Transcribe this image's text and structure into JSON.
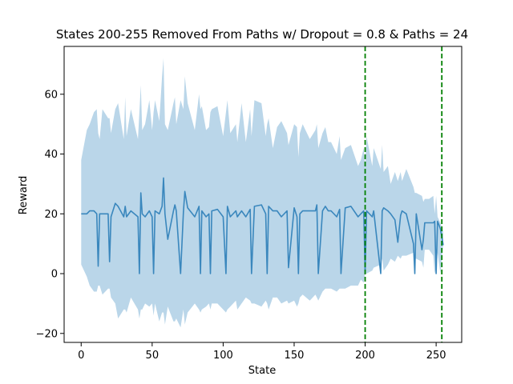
{
  "chart_data": {
    "type": "line",
    "title": "States 200-255 Removed From Paths w/ Dropout = 0.8 & Paths = 24",
    "xlabel": "State",
    "ylabel": "Reward",
    "xlim": [
      -12,
      268
    ],
    "ylim": [
      -23,
      76
    ],
    "xticks": [
      0,
      50,
      100,
      150,
      200,
      250
    ],
    "yticks": [
      -20,
      0,
      20,
      40,
      60
    ],
    "grid": false,
    "legend": "none",
    "colors": {
      "mean_line": "#3a87bd",
      "band": "#bad6e9",
      "markers": "#008000"
    },
    "series": [
      {
        "x": [
          0,
          4,
          6,
          9,
          11,
          12,
          13,
          15,
          19,
          20,
          21,
          24,
          26,
          30,
          31,
          32,
          35,
          40,
          41,
          42,
          43,
          45,
          48,
          50,
          51,
          52,
          55,
          57,
          58,
          59,
          61,
          65,
          66,
          67,
          70,
          72,
          73,
          75,
          80,
          83,
          84,
          85,
          88,
          90,
          91,
          92,
          96,
          100,
          102,
          103,
          105,
          109,
          110,
          113,
          116,
          119,
          120,
          122,
          127,
          130,
          131,
          132,
          135,
          138,
          141,
          145,
          146,
          150,
          152,
          153,
          154,
          156,
          161,
          165,
          166,
          167,
          170,
          172,
          174,
          176,
          180,
          182,
          183,
          186,
          190,
          195,
          197,
          199,
          200,
          201,
          205,
          206,
          211,
          212,
          213,
          216,
          218,
          221,
          223,
          225,
          226,
          229,
          234,
          235,
          236,
          240,
          241,
          242,
          245,
          248,
          249,
          250,
          251,
          253,
          255
        ],
        "mean": [
          20,
          20,
          21,
          21,
          20,
          2.5,
          20,
          20,
          20,
          4,
          19,
          23.5,
          22.5,
          19,
          22.5,
          19,
          21,
          19,
          0,
          27,
          20,
          19,
          21,
          19,
          0,
          21,
          20,
          22.5,
          32,
          20,
          11.5,
          21,
          23,
          21,
          0,
          20.5,
          27.5,
          22,
          19,
          22.5,
          0,
          21,
          19,
          20,
          0,
          21,
          21.5,
          19,
          0,
          22.5,
          19,
          21,
          19,
          21,
          19,
          21.5,
          0,
          22.5,
          23,
          20,
          0,
          22.5,
          21,
          21,
          19,
          21,
          2,
          22,
          19,
          0,
          20,
          21,
          21,
          21,
          23,
          0,
          21,
          22.5,
          21,
          21,
          19,
          21.5,
          0,
          22,
          22.5,
          19,
          20,
          21,
          0,
          21,
          19,
          21,
          0,
          21,
          22,
          21,
          20,
          18,
          10.5,
          19.5,
          21,
          20,
          10,
          0,
          20,
          8,
          11.5,
          17,
          17,
          17,
          17.5,
          0,
          17.5,
          15,
          9.5
        ],
        "lower": [
          3,
          -1,
          -4,
          -6,
          -6,
          -4,
          -4,
          -7,
          -5,
          -5,
          -8,
          -10,
          -15,
          -12,
          -12,
          -13,
          -8,
          -12,
          -15,
          -12,
          -12,
          -10,
          -11,
          -10,
          -14,
          -10,
          -16,
          -13,
          -13,
          -17,
          -11,
          -16,
          -16,
          -15,
          -18,
          -12,
          -17,
          -13,
          -10,
          -12,
          -13,
          -12,
          -11,
          -10,
          -12,
          -10,
          -10,
          -12,
          -13,
          -12,
          -11,
          -9,
          -12,
          -10,
          -8,
          -9,
          -10,
          -10,
          -11,
          -9,
          -10,
          -12,
          -8,
          -8,
          -10,
          -9,
          -10,
          -9,
          -11,
          -10,
          -8,
          -7,
          -9,
          -7,
          -8,
          -9,
          -6,
          -5,
          -5,
          -5,
          -6,
          -5,
          -5,
          -5,
          -4,
          -4,
          -2,
          -3,
          0,
          0,
          1,
          2,
          3,
          5,
          1,
          3,
          5,
          4,
          6,
          5,
          6,
          6,
          7,
          5,
          5,
          4,
          2,
          8,
          8,
          6,
          0,
          2,
          7,
          0,
          10
        ],
        "upper": [
          38,
          48,
          50,
          54,
          55,
          47,
          45,
          55,
          52,
          52,
          47,
          55,
          57,
          45,
          59,
          46,
          55,
          45,
          54,
          63,
          48,
          50,
          58,
          48,
          54,
          58,
          51,
          66,
          72,
          50,
          48,
          57,
          59,
          50,
          58,
          55,
          66,
          57,
          48,
          60,
          55,
          56,
          48,
          49,
          54,
          55,
          56,
          46,
          54,
          58,
          47,
          50,
          44,
          57,
          44,
          55,
          46,
          58,
          57,
          46,
          50,
          52,
          42,
          49,
          51,
          47,
          43,
          50,
          49,
          39,
          47,
          50,
          45,
          48,
          50,
          42,
          47,
          49,
          44,
          44,
          40,
          46,
          38,
          42,
          43,
          36,
          38,
          42,
          36,
          46,
          36,
          42,
          35,
          43,
          34,
          36,
          30,
          34,
          31,
          34,
          31,
          35,
          29,
          27,
          27,
          26,
          24,
          25,
          25,
          26,
          20,
          26,
          19,
          17,
          14
        ]
      }
    ],
    "vlines": [
      200,
      254
    ]
  }
}
